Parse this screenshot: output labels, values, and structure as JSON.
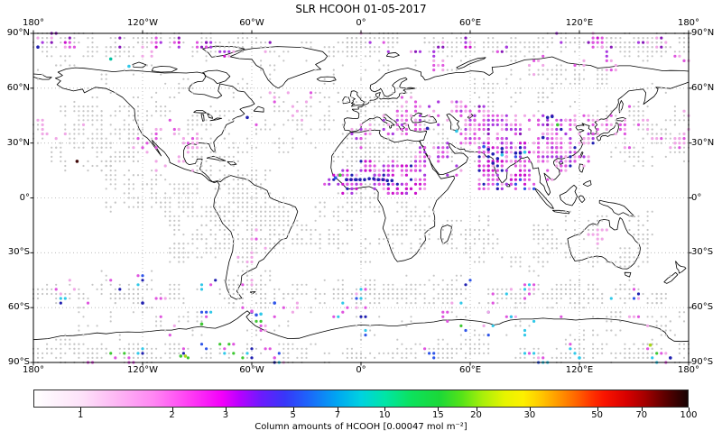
{
  "chart_data": {
    "type": "scatter",
    "projection": "equirectangular",
    "title": "SLR HCOOH 01-05-2017",
    "lon_tick_labels": [
      "180°",
      "120°W",
      "60°W",
      "0°",
      "60°E",
      "120°E",
      "180°"
    ],
    "lon_tick_values": [
      -180,
      -120,
      -60,
      0,
      60,
      120,
      180
    ],
    "lat_tick_labels": [
      "90°N",
      "60°N",
      "30°N",
      "0°",
      "30°S",
      "60°S",
      "90°S"
    ],
    "lat_tick_values": [
      90,
      60,
      30,
      0,
      -30,
      -60,
      -90
    ],
    "grid_lons": [
      -120,
      -60,
      0,
      60,
      120
    ],
    "grid_lats": [
      60,
      30,
      0,
      -30,
      -60
    ],
    "grid_resolution_deg": 2.5,
    "colorbar": {
      "label": "Column amounts of HCOOH [0.00047 mol m⁻²]",
      "tick_labels": [
        "1",
        "2",
        "3",
        "5",
        "7",
        "10",
        "15",
        "20",
        "30",
        "50",
        "70",
        "100"
      ],
      "tick_values": [
        1,
        2,
        3,
        5,
        7,
        10,
        15,
        20,
        30,
        50,
        70,
        100
      ],
      "vmin": 0.7,
      "vmax": 100,
      "scale": "log",
      "gradient": [
        [
          0,
          "#ffffff"
        ],
        [
          0.073,
          "#fde2f9"
        ],
        [
          0.128,
          "#fdb5f4"
        ],
        [
          0.183,
          "#ff86f3"
        ],
        [
          0.238,
          "#ff3df4"
        ],
        [
          0.287,
          "#f300fa"
        ],
        [
          0.314,
          "#b800ff"
        ],
        [
          0.348,
          "#6b1bfd"
        ],
        [
          0.383,
          "#3836f8"
        ],
        [
          0.417,
          "#1e62fa"
        ],
        [
          0.463,
          "#00a6f2"
        ],
        [
          0.5,
          "#00d2e0"
        ],
        [
          0.537,
          "#00e5a6"
        ],
        [
          0.576,
          "#0ce25e"
        ],
        [
          0.62,
          "#1bd838"
        ],
        [
          0.654,
          "#55e318"
        ],
        [
          0.686,
          "#a8ef0a"
        ],
        [
          0.72,
          "#e6f400"
        ],
        [
          0.748,
          "#fdf000"
        ],
        [
          0.775,
          "#ffc800"
        ],
        [
          0.803,
          "#ff9600"
        ],
        [
          0.83,
          "#ff6400"
        ],
        [
          0.851,
          "#ff3700"
        ],
        [
          0.872,
          "#fa1400"
        ],
        [
          0.906,
          "#d80000"
        ],
        [
          0.933,
          "#a80000"
        ],
        [
          0.964,
          "#600000"
        ],
        [
          1,
          "#170202"
        ]
      ]
    },
    "palette": {
      "gray": "#c6c6c6",
      "pink": "#f0a8e6",
      "magenta": "#df55df",
      "deepmagenta": "#cc11cc",
      "violet": "#a93ae0",
      "purple": "#8718b8",
      "navy": "#2020b0",
      "blue": "#2f55e8",
      "cyan": "#30c8e8",
      "teal": "#00c2a0",
      "green": "#3ec832",
      "lime": "#a8d816",
      "darkred": "#400808"
    },
    "dot_radius": {
      "background": 1.1,
      "value": 1.6
    },
    "clusters": [
      {
        "name": "arctic-gray-band",
        "lon": [
          -180,
          180
        ],
        "lat": [
          78,
          88
        ],
        "blocks": 120,
        "fill": 0.55,
        "colors": {
          "gray": 1
        }
      },
      {
        "name": "subarctic-gray",
        "lon": [
          -180,
          180
        ],
        "lat": [
          58,
          77
        ],
        "blocks": 45,
        "fill": 0.3,
        "colors": {
          "gray": 1
        }
      },
      {
        "name": "npac-east-gray",
        "lon": [
          -180,
          -122
        ],
        "lat": [
          15,
          50
        ],
        "blocks": 60,
        "fill": 0.45,
        "colors": {
          "gray": 1
        }
      },
      {
        "name": "npac-west-gray",
        "lon": [
          138,
          180
        ],
        "lat": [
          18,
          50
        ],
        "blocks": 40,
        "fill": 0.4,
        "colors": {
          "gray": 1
        }
      },
      {
        "name": "epac-tropics-gray",
        "lon": [
          -140,
          -92
        ],
        "lat": [
          -5,
          14
        ],
        "blocks": 30,
        "fill": 0.4,
        "colors": {
          "gray": 1
        }
      },
      {
        "name": "sepac-gray",
        "lon": [
          -108,
          -72
        ],
        "lat": [
          -35,
          -4
        ],
        "blocks": 40,
        "fill": 0.45,
        "colors": {
          "gray": 1
        }
      },
      {
        "name": "samerica-gray",
        "lon": [
          -74,
          -38
        ],
        "lat": [
          -33,
          4
        ],
        "blocks": 50,
        "fill": 0.45,
        "colors": {
          "gray": 1
        }
      },
      {
        "name": "satlantic-gray",
        "lon": [
          -38,
          12
        ],
        "lat": [
          -33,
          -4
        ],
        "blocks": 30,
        "fill": 0.35,
        "colors": {
          "gray": 1
        }
      },
      {
        "name": "sahara-gray",
        "lon": [
          -14,
          34
        ],
        "lat": [
          16,
          31
        ],
        "blocks": 35,
        "fill": 0.45,
        "colors": {
          "gray": 1
        }
      },
      {
        "name": "safrica-gray",
        "lon": [
          12,
          40
        ],
        "lat": [
          -28,
          -4
        ],
        "blocks": 25,
        "fill": 0.35,
        "colors": {
          "gray": 1
        }
      },
      {
        "name": "wasia-gray",
        "lon": [
          38,
          68
        ],
        "lat": [
          20,
          40
        ],
        "blocks": 25,
        "fill": 0.35,
        "colors": {
          "gray": 1
        }
      },
      {
        "name": "siberia-gray",
        "lon": [
          60,
          140
        ],
        "lat": [
          46,
          70
        ],
        "blocks": 30,
        "fill": 0.3,
        "colors": {
          "gray": 1
        }
      },
      {
        "name": "australia-gray",
        "lon": [
          92,
          158
        ],
        "lat": [
          -40,
          -8
        ],
        "blocks": 45,
        "fill": 0.35,
        "colors": {
          "gray": 1
        }
      },
      {
        "name": "indianocean-gray",
        "lon": [
          42,
          110
        ],
        "lat": [
          -40,
          -12
        ],
        "blocks": 30,
        "fill": 0.3,
        "colors": {
          "gray": 1
        }
      },
      {
        "name": "southern-row-gray",
        "lon": [
          -180,
          180
        ],
        "lat": [
          -57,
          -49
        ],
        "blocks": 110,
        "fill": 0.5,
        "colors": {
          "gray": 1
        }
      },
      {
        "name": "southern-row2-gray",
        "lon": [
          -180,
          180
        ],
        "lat": [
          -49,
          -41
        ],
        "blocks": 35,
        "fill": 0.3,
        "colors": {
          "gray": 1
        }
      },
      {
        "name": "antarctic-interior-gray",
        "lon": [
          -180,
          180
        ],
        "lat": [
          -88,
          -81
        ],
        "blocks": 100,
        "fill": 0.5,
        "colors": {
          "gray": 1
        }
      },
      {
        "name": "antarctic-coast-gray",
        "lon": [
          -180,
          180
        ],
        "lat": [
          -79,
          -61
        ],
        "blocks": 60,
        "fill": 0.3,
        "colors": {
          "gray": 1
        }
      },
      {
        "name": "natlantic-gray",
        "lon": [
          -62,
          -8
        ],
        "lat": [
          28,
          56
        ],
        "blocks": 30,
        "fill": 0.3,
        "colors": {
          "gray": 1
        }
      },
      {
        "name": "europe-gray",
        "lon": [
          -10,
          32
        ],
        "lat": [
          36,
          56
        ],
        "blocks": 22,
        "fill": 0.3,
        "colors": {
          "gray": 1
        }
      },
      {
        "name": "namerica-gray",
        "lon": [
          -126,
          -68
        ],
        "lat": [
          24,
          56
        ],
        "blocks": 40,
        "fill": 0.3,
        "colors": {
          "gray": 1
        }
      },
      {
        "name": "caribbean-gray",
        "lon": [
          -96,
          -52
        ],
        "lat": [
          6,
          24
        ],
        "blocks": 25,
        "fill": 0.3,
        "colors": {
          "gray": 1
        }
      },
      {
        "name": "gulf-guinea-gray",
        "lon": [
          -12,
          12
        ],
        "lat": [
          -6,
          6
        ],
        "blocks": 15,
        "fill": 0.3,
        "colors": {
          "gray": 1
        }
      },
      {
        "name": "india",
        "lon": [
          66,
          92
        ],
        "lat": [
          6,
          32
        ],
        "blocks": 40,
        "fill": 0.5,
        "colors": {
          "magenta": 4,
          "deepmagenta": 3,
          "violet": 2,
          "pink": 2,
          "navy": 1,
          "blue": 1
        }
      },
      {
        "name": "central-asia",
        "lon": [
          55,
          104
        ],
        "lat": [
          32,
          47
        ],
        "blocks": 28,
        "fill": 0.4,
        "colors": {
          "magenta": 4,
          "violet": 2,
          "pink": 3,
          "purple": 1
        }
      },
      {
        "name": "china",
        "lon": [
          98,
          126
        ],
        "lat": [
          20,
          43
        ],
        "blocks": 30,
        "fill": 0.4,
        "colors": {
          "magenta": 4,
          "pink": 3,
          "violet": 2,
          "navy": 1
        }
      },
      {
        "name": "sahel",
        "lon": [
          -17,
          40
        ],
        "lat": [
          4,
          17
        ],
        "blocks": 32,
        "fill": 0.45,
        "colors": {
          "magenta": 4,
          "deepmagenta": 3,
          "violet": 2,
          "navy": 1,
          "pink": 1
        }
      },
      {
        "name": "east-europe",
        "lon": [
          14,
          60
        ],
        "lat": [
          35,
          52
        ],
        "blocks": 24,
        "fill": 0.4,
        "colors": {
          "pink": 4,
          "magenta": 3,
          "violet": 1
        }
      },
      {
        "name": "arctic-colored",
        "lon": [
          -180,
          180
        ],
        "lat": [
          79,
          88
        ],
        "blocks": 30,
        "fill": 0.35,
        "colors": {
          "magenta": 3,
          "violet": 2,
          "purple": 2,
          "pink": 2,
          "deepmagenta": 1
        }
      },
      {
        "name": "npac-west-colored",
        "lon": [
          140,
          180
        ],
        "lat": [
          28,
          50
        ],
        "blocks": 10,
        "fill": 0.3,
        "colors": {
          "pink": 3,
          "magenta": 1
        }
      },
      {
        "name": "npac-east-colored",
        "lon": [
          -180,
          -150
        ],
        "lat": [
          30,
          50
        ],
        "blocks": 5,
        "fill": 0.3,
        "colors": {
          "pink": 1
        }
      },
      {
        "name": "red-sea",
        "lon": [
          32,
          52
        ],
        "lat": [
          11,
          30
        ],
        "blocks": 12,
        "fill": 0.35,
        "colors": {
          "magenta": 2,
          "violet": 2,
          "pink": 1
        }
      },
      {
        "name": "se-asia",
        "lon": [
          92,
          112
        ],
        "lat": [
          8,
          28
        ],
        "blocks": 10,
        "fill": 0.3,
        "colors": {
          "magenta": 2,
          "pink": 2
        }
      },
      {
        "name": "southern-ocean-colored",
        "lon": [
          -180,
          180
        ],
        "lat": [
          -60,
          -42
        ],
        "blocks": 22,
        "fill": 0.25,
        "colors": {
          "magenta": 3,
          "pink": 2,
          "blue": 1,
          "navy": 1,
          "cyan": 1,
          "green": 0.3
        }
      },
      {
        "name": "antarctic-coast-colored",
        "lon": [
          -180,
          180
        ],
        "lat": [
          -76,
          -60
        ],
        "blocks": 26,
        "fill": 0.28,
        "colors": {
          "magenta": 3,
          "pink": 2,
          "blue": 1,
          "cyan": 1,
          "navy": 1,
          "green": 0.4
        }
      },
      {
        "name": "antarctic-bottom-colored",
        "lon": [
          -180,
          180
        ],
        "lat": [
          -88,
          -83
        ],
        "blocks": 20,
        "fill": 0.3,
        "colors": {
          "magenta": 3,
          "blue": 2,
          "navy": 1,
          "cyan": 1.5,
          "green": 0.7,
          "pink": 1
        }
      },
      {
        "name": "namerica-colored",
        "lon": [
          -122,
          -92
        ],
        "lat": [
          24,
          42
        ],
        "blocks": 8,
        "fill": 0.3,
        "colors": {
          "pink": 3,
          "magenta": 1
        }
      },
      {
        "name": "eurasia-arctic-colored",
        "lon": [
          30,
          180
        ],
        "lat": [
          64,
          78
        ],
        "blocks": 10,
        "fill": 0.3,
        "colors": {
          "magenta": 2,
          "pink": 2
        }
      },
      {
        "name": "japan-colored",
        "lon": [
          124,
          146
        ],
        "lat": [
          32,
          47
        ],
        "blocks": 6,
        "fill": 0.3,
        "colors": {
          "magenta": 2,
          "pink": 2
        }
      },
      {
        "name": "mexico-colored",
        "lon": [
          -112,
          -92
        ],
        "lat": [
          14,
          30
        ],
        "blocks": 6,
        "fill": 0.3,
        "colors": {
          "pink": 1
        }
      },
      {
        "name": "sbrazil-colored",
        "lon": [
          -66,
          -48
        ],
        "lat": [
          -36,
          -18
        ],
        "blocks": 5,
        "fill": 0.25,
        "colors": {
          "pink": 2,
          "magenta": 1
        }
      },
      {
        "name": "australia-colored",
        "lon": [
          118,
          136
        ],
        "lat": [
          -28,
          -19
        ],
        "blocks": 3,
        "fill": 0.3,
        "colors": {
          "pink": 1
        }
      },
      {
        "name": "natlantic-colored",
        "lon": [
          -58,
          -18
        ],
        "lat": [
          34,
          56
        ],
        "blocks": 6,
        "fill": 0.25,
        "colors": {
          "pink": 2,
          "magenta": 1
        }
      },
      {
        "name": "mediterranean-colored",
        "lon": [
          -6,
          36
        ],
        "lat": [
          30,
          44
        ],
        "blocks": 8,
        "fill": 0.3,
        "colors": {
          "pink": 2,
          "magenta": 1,
          "violet": 0.5
        }
      }
    ],
    "highlight_points": [
      {
        "lon": -8,
        "lat": 10,
        "color": "navy"
      },
      {
        "lon": -5.5,
        "lat": 10,
        "color": "navy"
      },
      {
        "lon": -3,
        "lat": 10,
        "color": "navy"
      },
      {
        "lon": -0.5,
        "lat": 10,
        "color": "navy"
      },
      {
        "lon": 2,
        "lat": 10,
        "color": "navy"
      },
      {
        "lon": 4.5,
        "lat": 10.5,
        "color": "navy"
      },
      {
        "lon": 7,
        "lat": 10.5,
        "color": "navy"
      },
      {
        "lon": 9.5,
        "lat": 10,
        "color": "navy"
      },
      {
        "lon": 12,
        "lat": 10,
        "color": "navy"
      },
      {
        "lon": 14.5,
        "lat": 9.5,
        "color": "navy"
      },
      {
        "lon": 17,
        "lat": 9.5,
        "color": "navy"
      },
      {
        "lon": -14,
        "lat": 11,
        "color": "blue"
      },
      {
        "lon": -11.5,
        "lat": 12.5,
        "color": "green"
      },
      {
        "lon": 70,
        "lat": 26.5,
        "color": "navy"
      },
      {
        "lon": 72.5,
        "lat": 24,
        "color": "navy"
      },
      {
        "lon": 75,
        "lat": 21.5,
        "color": "navy"
      },
      {
        "lon": 72.5,
        "lat": 19,
        "color": "navy"
      },
      {
        "lon": 77.5,
        "lat": 27,
        "color": "navy"
      },
      {
        "lon": 85,
        "lat": 24.5,
        "color": "navy"
      },
      {
        "lon": 87.5,
        "lat": 24.5,
        "color": "navy"
      },
      {
        "lon": 77.5,
        "lat": 23.5,
        "color": "cyan"
      },
      {
        "lon": 90,
        "lat": 25,
        "color": "cyan"
      },
      {
        "lon": 67.5,
        "lat": 28,
        "color": "blue"
      },
      {
        "lon": 102.5,
        "lat": 44,
        "color": "navy"
      },
      {
        "lon": 105,
        "lat": 44.5,
        "color": "navy"
      },
      {
        "lon": 100,
        "lat": 33,
        "color": "navy"
      },
      {
        "lon": 108,
        "lat": 40,
        "color": "green"
      },
      {
        "lon": 52.5,
        "lat": 36.5,
        "color": "cyan"
      },
      {
        "lon": 36.5,
        "lat": 38,
        "color": "navy"
      },
      {
        "lon": -62.5,
        "lat": 44,
        "color": "navy"
      },
      {
        "lon": -127.5,
        "lat": 72,
        "color": "cyan"
      },
      {
        "lon": -137.5,
        "lat": 76,
        "color": "teal"
      },
      {
        "lon": -177.5,
        "lat": 82.5,
        "color": "navy"
      },
      {
        "lon": -156,
        "lat": 20,
        "color": "darkred"
      },
      {
        "lon": -57.5,
        "lat": -64,
        "color": "blue"
      },
      {
        "lon": -55,
        "lat": -63.5,
        "color": "cyan"
      },
      {
        "lon": -60,
        "lat": -62,
        "color": "magenta"
      },
      {
        "lon": -87.5,
        "lat": -69,
        "color": "green"
      },
      {
        "lon": 159,
        "lat": -80.5,
        "color": "lime"
      },
      {
        "lon": -99,
        "lat": -86.5,
        "color": "green"
      },
      {
        "lon": -96.5,
        "lat": -86.5,
        "color": "lime"
      },
      {
        "lon": -47.5,
        "lat": -57.5,
        "color": "blue"
      },
      {
        "lon": -120,
        "lat": -57.5,
        "color": "navy"
      },
      {
        "lon": 170,
        "lat": -87.5,
        "color": "navy"
      },
      {
        "lon": 120,
        "lat": -87.5,
        "color": "cyan"
      }
    ]
  }
}
